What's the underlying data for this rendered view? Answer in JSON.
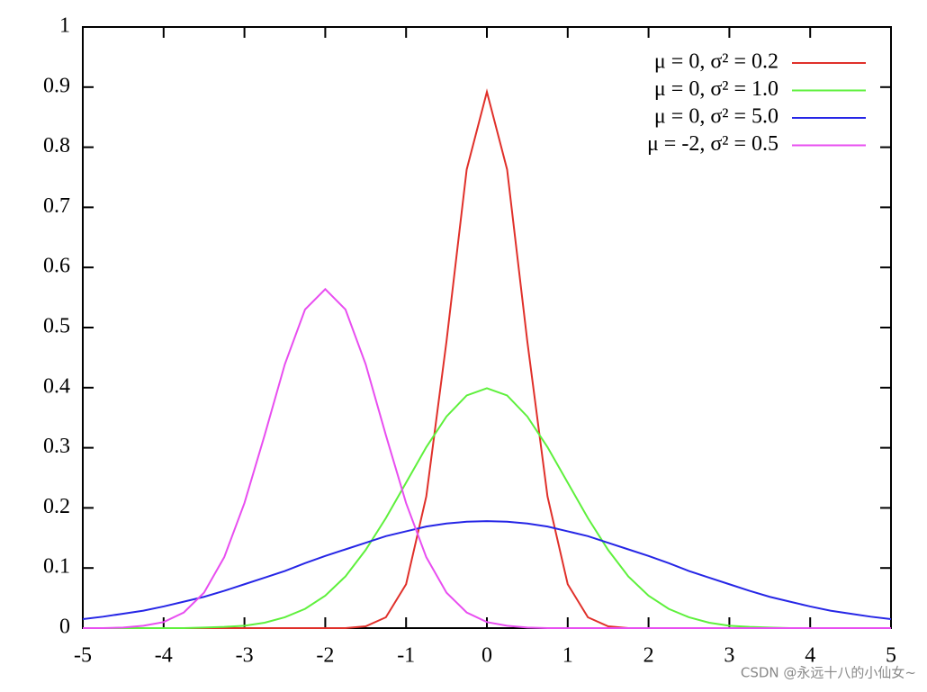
{
  "chart_data": {
    "type": "line",
    "x": [
      -5,
      -4.75,
      -4.5,
      -4.25,
      -4,
      -3.75,
      -3.5,
      -3.25,
      -3,
      -2.75,
      -2.5,
      -2.25,
      -2,
      -1.75,
      -1.5,
      -1.25,
      -1,
      -0.75,
      -0.5,
      -0.25,
      0,
      0.25,
      0.5,
      0.75,
      1,
      1.25,
      1.5,
      1.75,
      2,
      2.25,
      2.5,
      2.75,
      3,
      3.25,
      3.5,
      3.75,
      4,
      4.25,
      4.5,
      4.75,
      5
    ],
    "series": [
      {
        "name": "μ = 0, σ² = 0.2",
        "color": "#e0302a",
        "values": [
          0,
          0,
          0,
          0,
          0,
          0,
          0,
          0,
          0,
          0,
          0,
          0,
          0,
          0,
          0.003,
          0.018,
          0.073,
          0.219,
          0.477,
          0.763,
          0.892,
          0.763,
          0.477,
          0.219,
          0.073,
          0.018,
          0.003,
          0,
          0,
          0,
          0,
          0,
          0,
          0,
          0,
          0,
          0,
          0,
          0,
          0,
          0
        ]
      },
      {
        "name": "μ = 0, σ² = 1.0",
        "color": "#5ef03c",
        "values": [
          0,
          0,
          0,
          0,
          0,
          0,
          0.001,
          0.002,
          0.004,
          0.009,
          0.018,
          0.032,
          0.054,
          0.086,
          0.13,
          0.183,
          0.242,
          0.301,
          0.352,
          0.387,
          0.399,
          0.387,
          0.352,
          0.301,
          0.242,
          0.183,
          0.13,
          0.086,
          0.054,
          0.032,
          0.018,
          0.009,
          0.004,
          0.002,
          0.001,
          0,
          0,
          0,
          0,
          0,
          0
        ]
      },
      {
        "name": "μ = 0, σ² = 5.0",
        "color": "#2626e6",
        "values": [
          0.015,
          0.019,
          0.024,
          0.029,
          0.036,
          0.044,
          0.052,
          0.062,
          0.073,
          0.084,
          0.095,
          0.108,
          0.12,
          0.131,
          0.142,
          0.153,
          0.161,
          0.169,
          0.174,
          0.177,
          0.178,
          0.177,
          0.174,
          0.169,
          0.161,
          0.153,
          0.142,
          0.131,
          0.12,
          0.108,
          0.095,
          0.084,
          0.073,
          0.062,
          0.052,
          0.044,
          0.036,
          0.029,
          0.024,
          0.019,
          0.015
        ]
      },
      {
        "name": "μ = -2, σ² = 0.5",
        "color": "#e84ef0",
        "values": [
          0,
          0,
          0.001,
          0.004,
          0.01,
          0.026,
          0.059,
          0.118,
          0.208,
          0.321,
          0.439,
          0.53,
          0.564,
          0.53,
          0.439,
          0.321,
          0.208,
          0.118,
          0.059,
          0.026,
          0.01,
          0.004,
          0.001,
          0,
          0,
          0,
          0,
          0,
          0,
          0,
          0,
          0,
          0,
          0,
          0,
          0,
          0,
          0,
          0,
          0,
          0
        ]
      }
    ],
    "xlim": [
      -5,
      5
    ],
    "ylim": [
      0,
      1
    ],
    "xticks": [
      -5,
      -4,
      -3,
      -2,
      -1,
      0,
      1,
      2,
      3,
      4,
      5
    ],
    "yticks": [
      0,
      0.1,
      0.2,
      0.3,
      0.4,
      0.5,
      0.6,
      0.7,
      0.8,
      0.9,
      1
    ],
    "legend": "upper right",
    "watermark": "CSDN @永远十八的小仙女~"
  }
}
